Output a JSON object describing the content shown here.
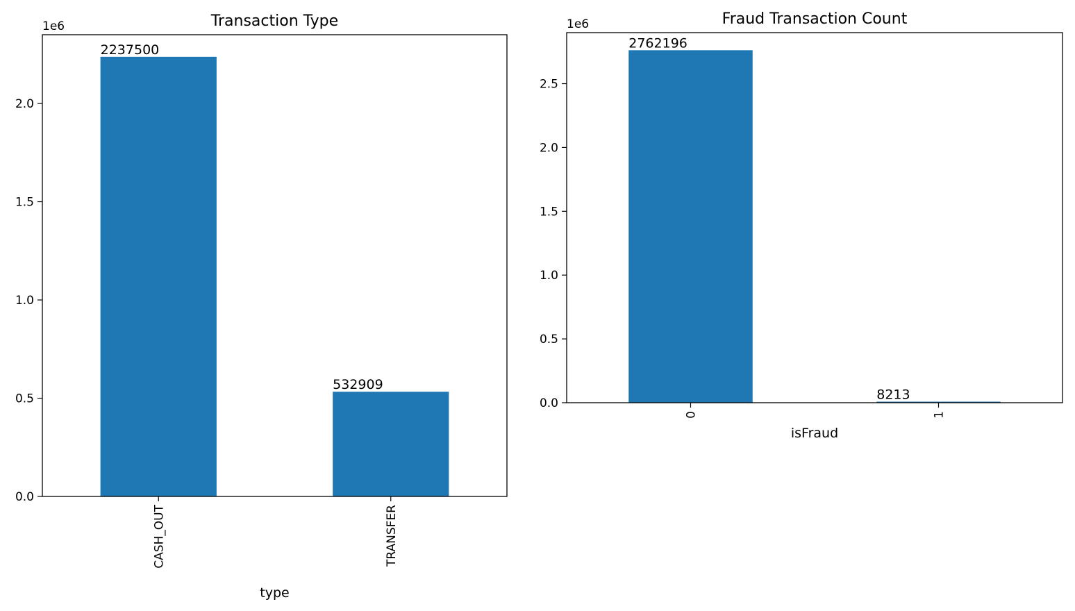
{
  "chart_data": [
    {
      "type": "bar",
      "title": "Transaction Type",
      "xlabel": "type",
      "ylabel": "",
      "categories": [
        "CASH_OUT",
        "TRANSFER"
      ],
      "values": [
        2237500,
        532909
      ],
      "data_labels": [
        "2237500",
        "532909"
      ],
      "y_offset_label": "1e6",
      "ylim": [
        0,
        2350000
      ],
      "yticks": [
        0,
        500000,
        1000000,
        1500000,
        2000000
      ],
      "ytick_labels": [
        "0.0",
        "0.5",
        "1.0",
        "1.5",
        "2.0"
      ],
      "xtick_rotation": "vertical",
      "bar_color": "#1f77b4",
      "grid": false,
      "legend": "none"
    },
    {
      "type": "bar",
      "title": "Fraud Transaction Count",
      "xlabel": "isFraud",
      "ylabel": "",
      "categories": [
        "0",
        "1"
      ],
      "values": [
        2762196,
        8213
      ],
      "data_labels": [
        "2762196",
        "8213"
      ],
      "y_offset_label": "1e6",
      "ylim": [
        0,
        2900000
      ],
      "yticks": [
        0,
        500000,
        1000000,
        1500000,
        2000000,
        2500000
      ],
      "ytick_labels": [
        "0.0",
        "0.5",
        "1.0",
        "1.5",
        "2.0",
        "2.5"
      ],
      "xtick_rotation": "vertical",
      "bar_color": "#1f77b4",
      "grid": false,
      "legend": "none"
    }
  ]
}
